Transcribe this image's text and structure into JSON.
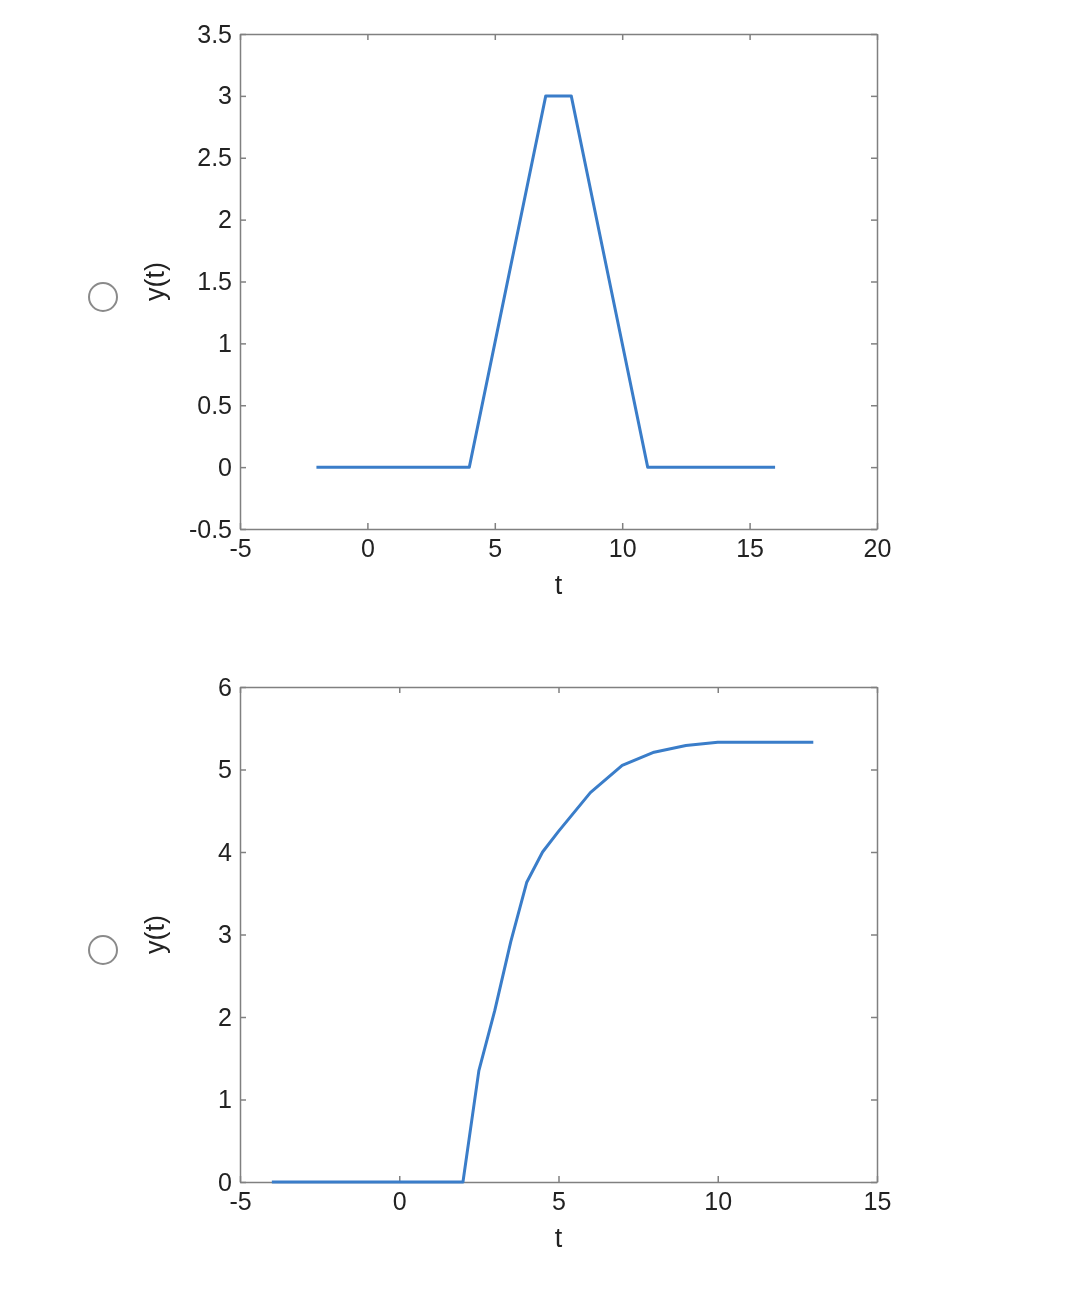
{
  "chart_data": [
    {
      "type": "line",
      "xlabel": "t",
      "ylabel": "y(t)",
      "xlim": [
        -5,
        20
      ],
      "ylim": [
        -0.5,
        3.5
      ],
      "xticks": [
        -5,
        0,
        5,
        10,
        15,
        20
      ],
      "yticks": [
        -0.5,
        0,
        0.5,
        1,
        1.5,
        2,
        2.5,
        3,
        3.5
      ],
      "x": [
        -2,
        4,
        7,
        8,
        11,
        16
      ],
      "series": [
        {
          "color": "#3a7dc9",
          "values": [
            0,
            0,
            3,
            3,
            0,
            0
          ]
        }
      ]
    },
    {
      "type": "line",
      "xlabel": "t",
      "ylabel": "y(t)",
      "xlim": [
        -5,
        15
      ],
      "ylim": [
        0,
        6
      ],
      "xticks": [
        -5,
        0,
        5,
        10,
        15
      ],
      "yticks": [
        0,
        1,
        2,
        3,
        4,
        5,
        6
      ],
      "x": [
        -4,
        2,
        2.5,
        3,
        3.5,
        4,
        4.5,
        5,
        6,
        7,
        8,
        9,
        10,
        13
      ],
      "series": [
        {
          "color": "#3a7dc9",
          "values": [
            0,
            0,
            1.35,
            2.08,
            2.91,
            3.63,
            4.0,
            4.25,
            4.72,
            5.05,
            5.21,
            5.29,
            5.33,
            5.33
          ]
        }
      ]
    }
  ]
}
